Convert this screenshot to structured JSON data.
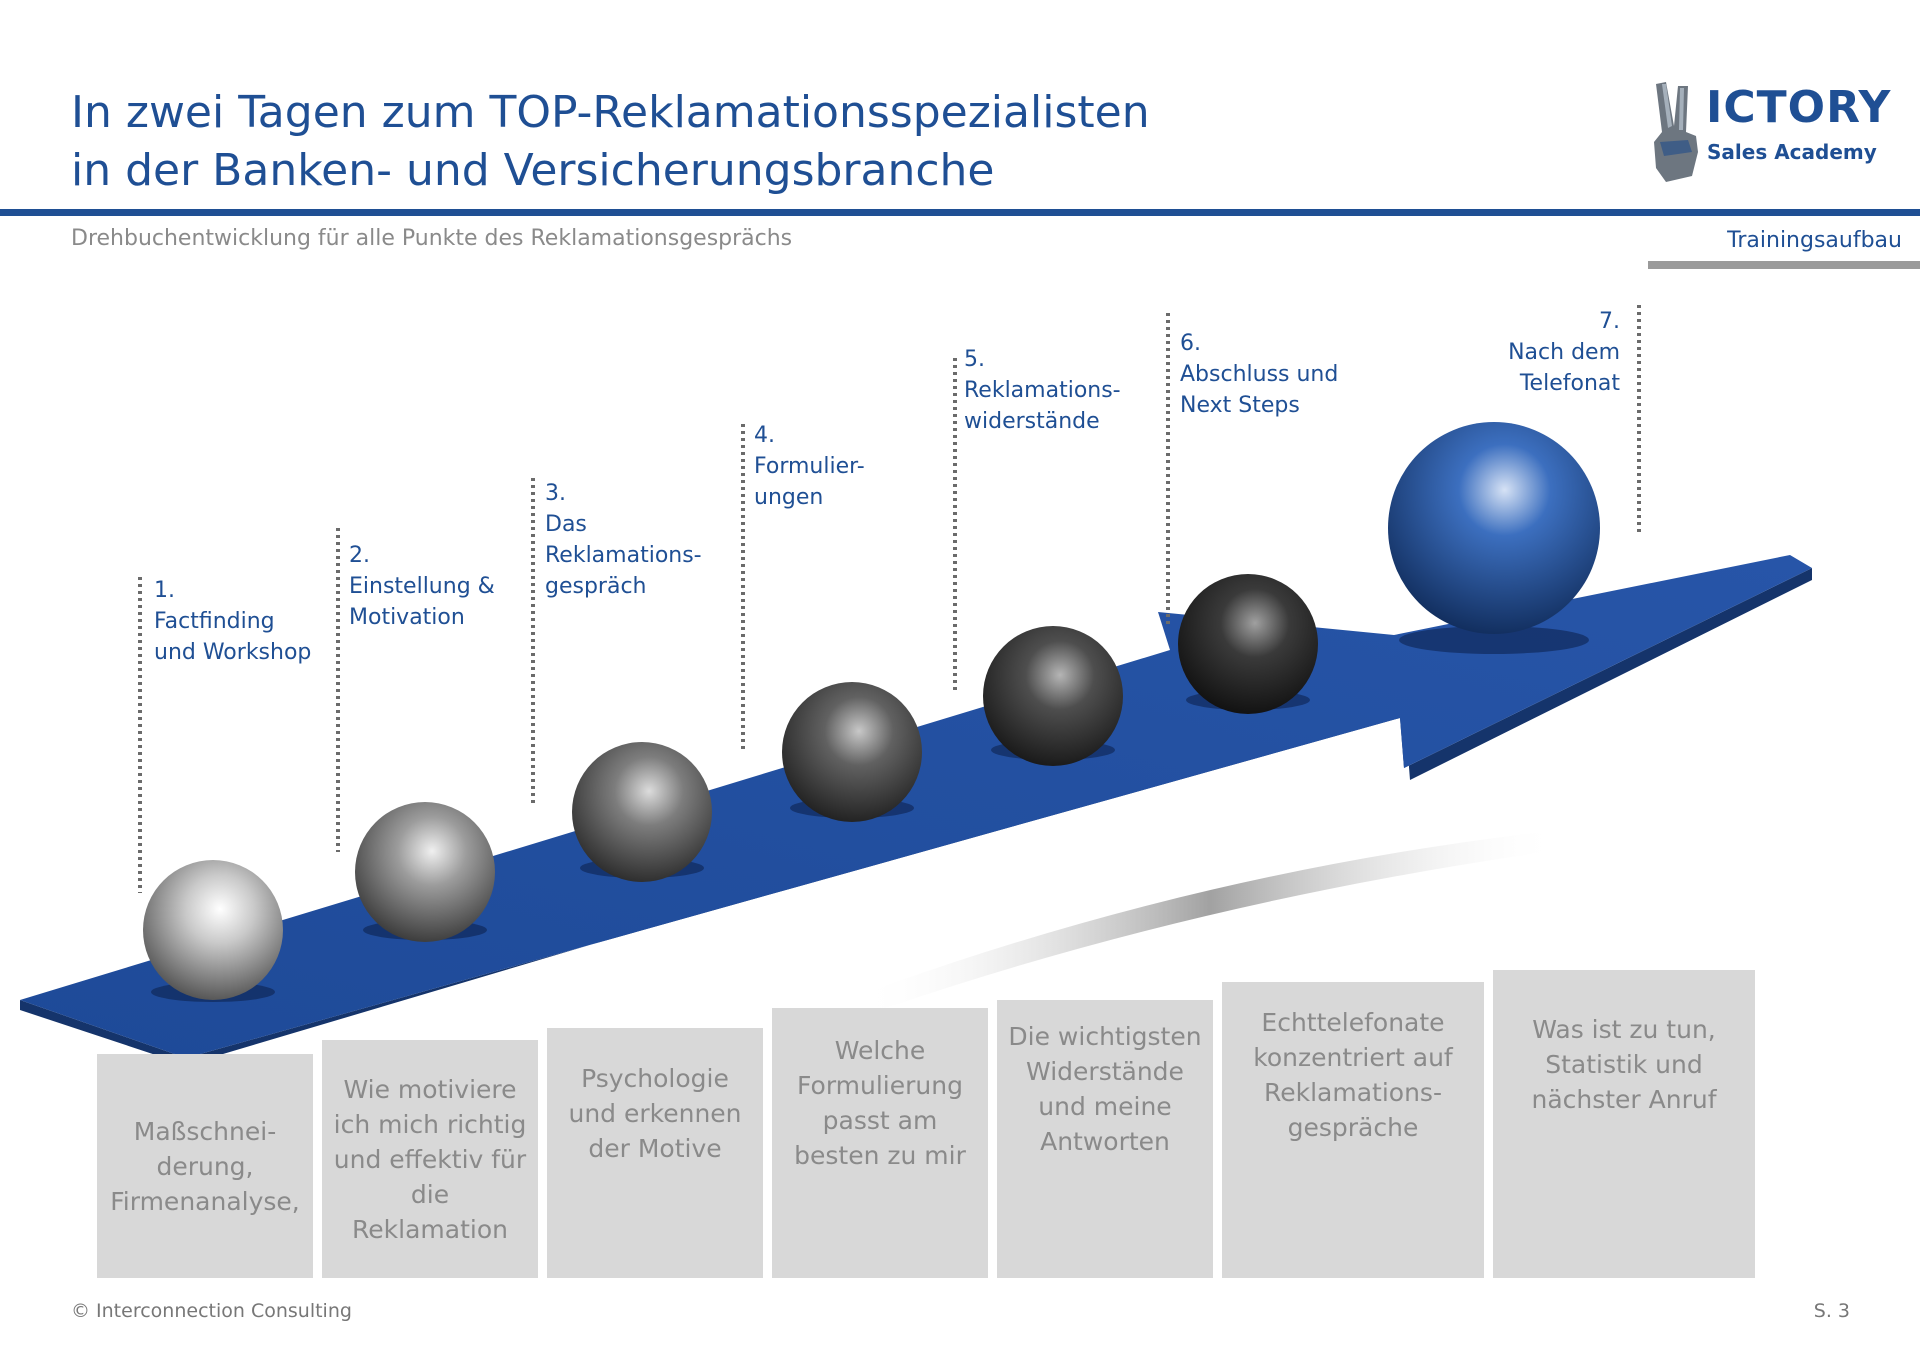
{
  "header": {
    "title_line1": "In zwei Tagen zum TOP-Reklamationsspezialisten",
    "title_line2": "in der Banken- und Versicherungsbranche",
    "subtitle": "Drehbuchentwicklung für alle Punkte des Reklamationsgesprächs",
    "section": "Trainingsaufbau"
  },
  "logo": {
    "word_first": "V",
    "word_rest": "ICTORY",
    "sub": "Sales Academy",
    "icon": "victory-hand-icon"
  },
  "steps": [
    {
      "num": "1.",
      "label_lines": [
        "Factfinding",
        "und Workshop"
      ],
      "description": [
        "Maßschnei-",
        "derung,",
        "Firmenanalyse,"
      ]
    },
    {
      "num": "2.",
      "label_lines": [
        "Einstellung &",
        "Motivation"
      ],
      "description": [
        "Wie motiviere",
        "ich mich richtig",
        "und effektiv für",
        "die",
        "Reklamation"
      ]
    },
    {
      "num": "3.",
      "label_lines": [
        "Das",
        "Reklamations-",
        "gespräch"
      ],
      "description": [
        "Psychologie",
        "und erkennen",
        "der Motive"
      ]
    },
    {
      "num": "4.",
      "label_lines": [
        "Formulier-",
        "ungen"
      ],
      "description": [
        "Welche",
        "Formulierung",
        "passt am",
        "besten zu mir"
      ]
    },
    {
      "num": "5.",
      "label_lines": [
        "Reklamations-",
        "widerstände"
      ],
      "description": [
        "Die wichtigsten",
        "Widerstände",
        "und meine",
        "Antworten"
      ]
    },
    {
      "num": "6.",
      "label_lines": [
        "Abschluss und",
        "Next Steps"
      ],
      "description": [
        "Echttelefonate",
        "konzentriert auf",
        "Reklamations-",
        "gespräche"
      ]
    },
    {
      "num": "7.",
      "label_lines": [
        "Nach dem",
        "Telefonat"
      ],
      "description": [
        "Was ist zu tun,",
        "Statistik und",
        "nächster Anruf"
      ]
    }
  ],
  "colors": {
    "brand_blue": "#1f4f94",
    "arrow_blue": "#1f4a97",
    "box_gray": "#d8d8d8",
    "text_gray": "#8a8a8a"
  },
  "footer": {
    "copyright": "© Interconnection Consulting",
    "page": "S. 3"
  }
}
